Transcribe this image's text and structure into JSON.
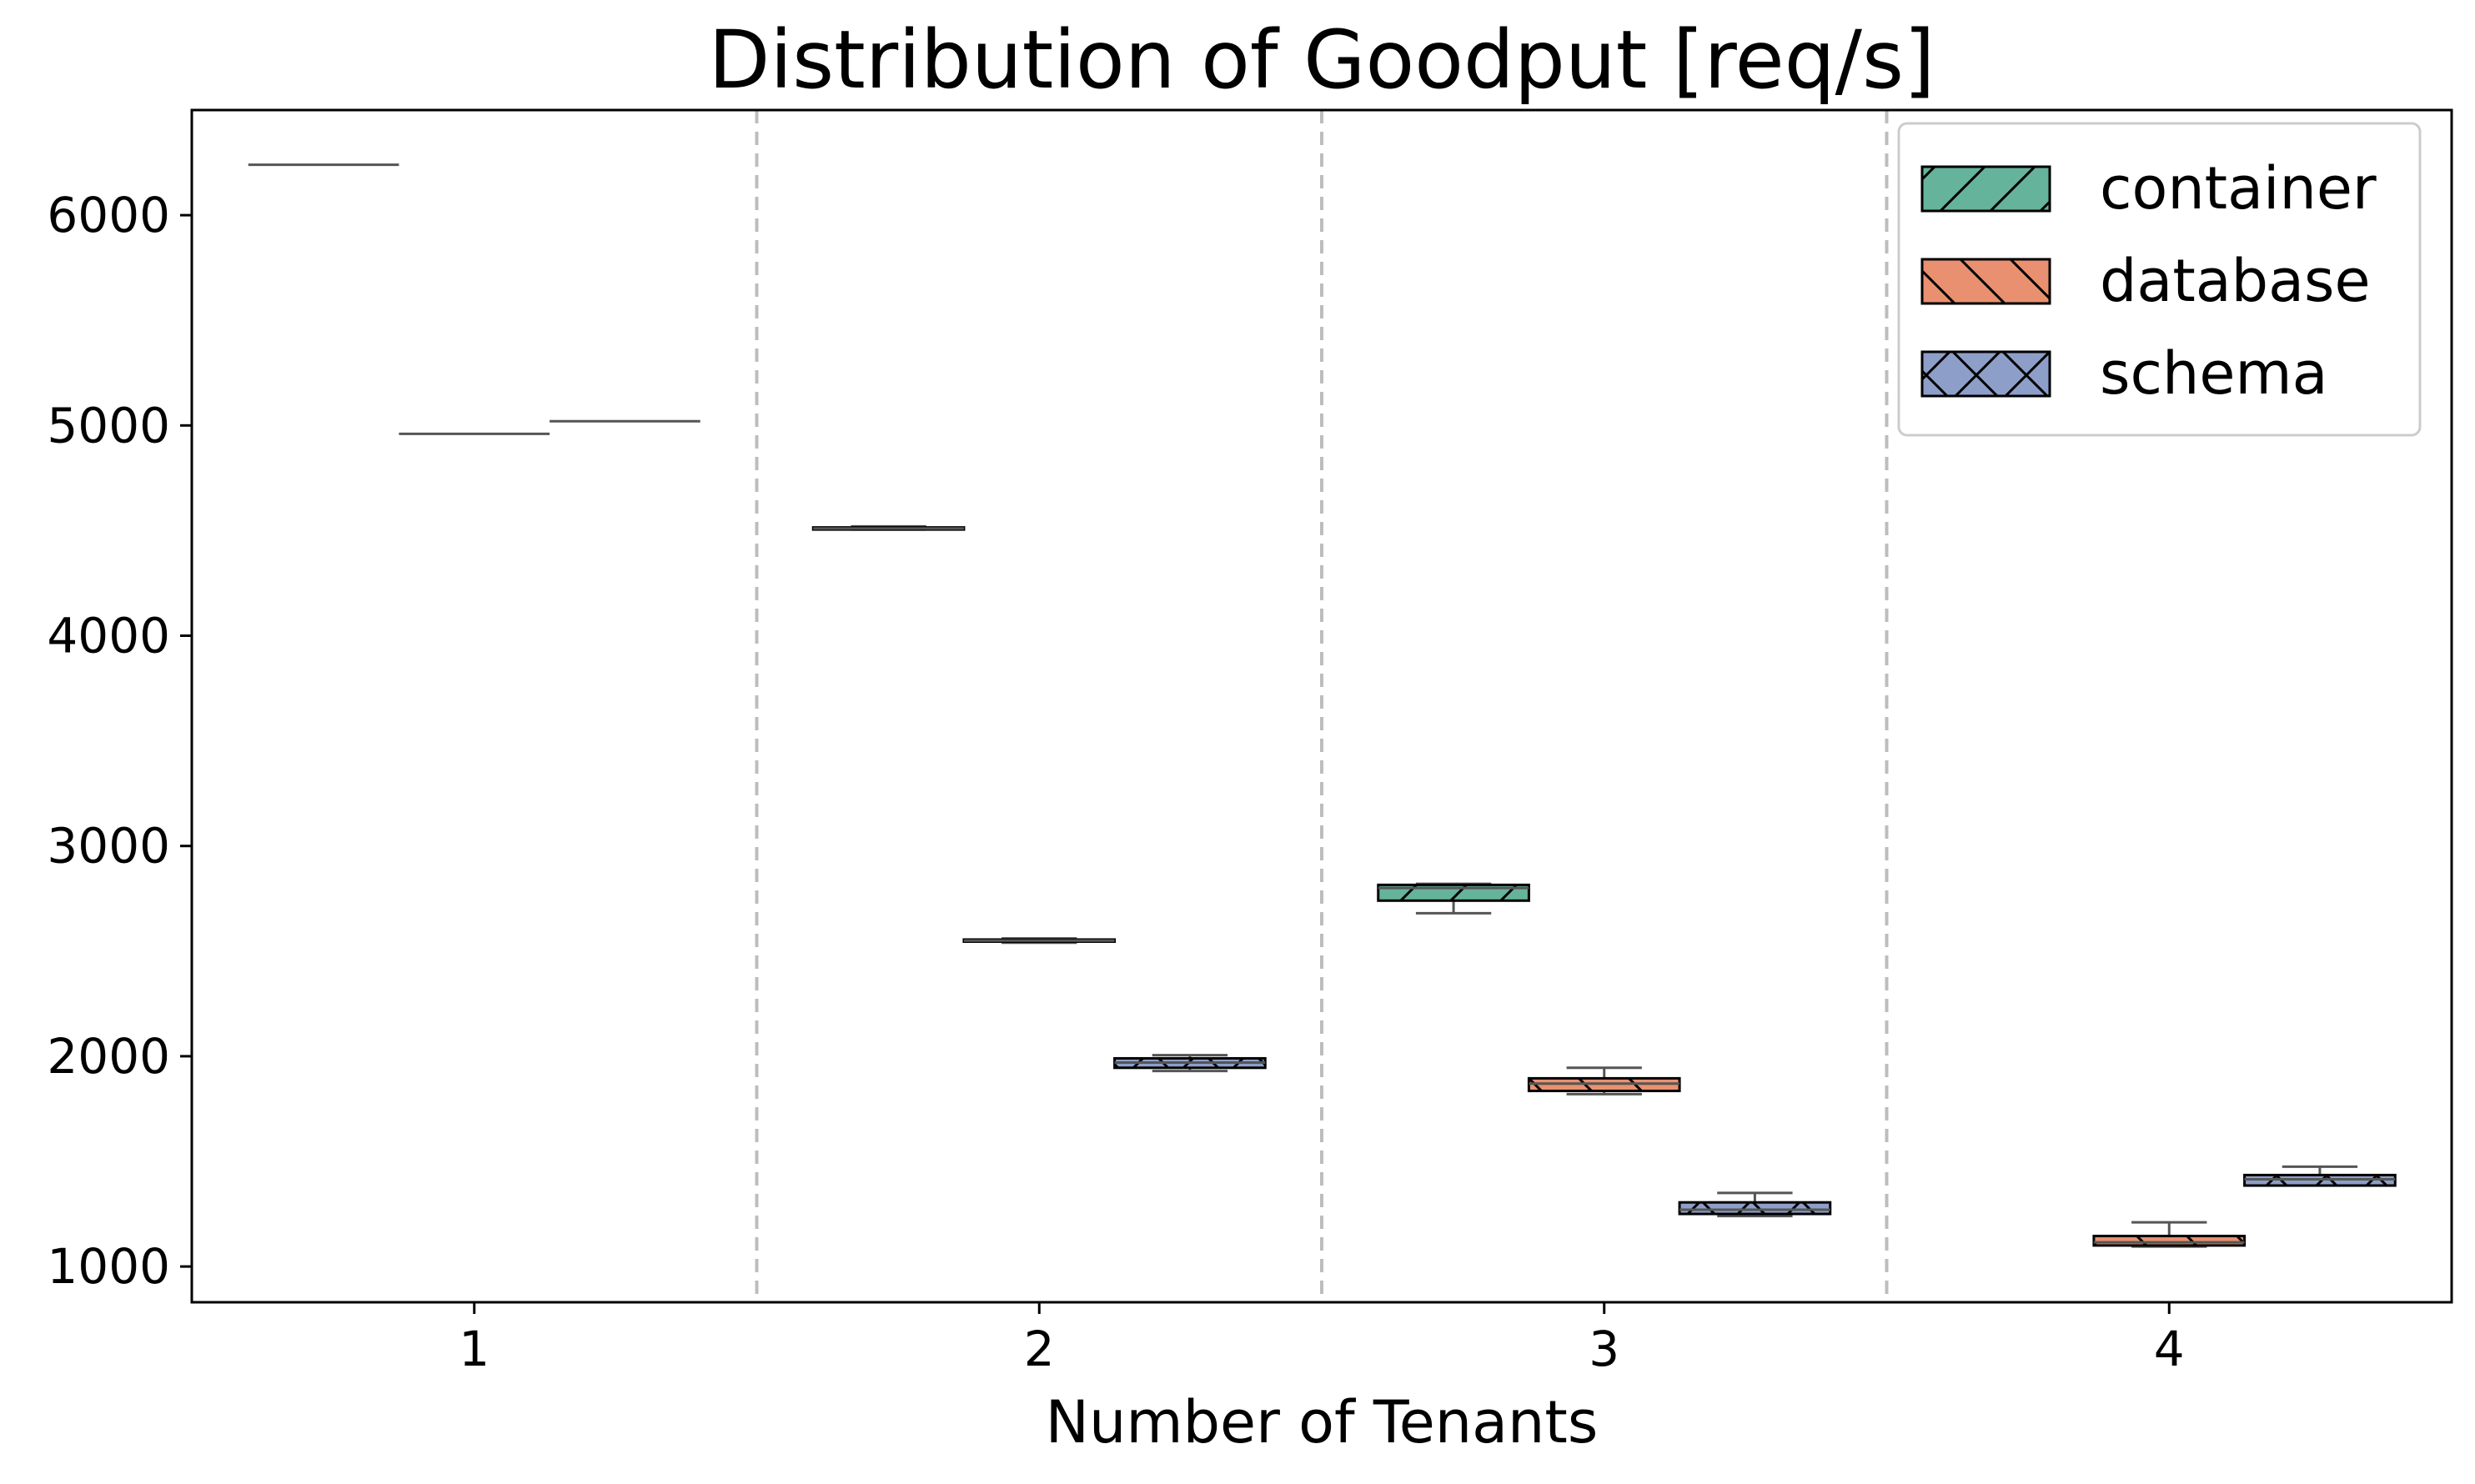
{
  "chart_data": {
    "type": "box",
    "title": "Distribution of Goodput [req/s]",
    "xlabel": "Number of Tenants",
    "ylabel": "",
    "categories": [
      "1",
      "2",
      "3",
      "4"
    ],
    "yticks": [
      "1000",
      "2000",
      "3000",
      "4000",
      "5000",
      "6000"
    ],
    "ylim": [
      830,
      6500
    ],
    "grid": false,
    "group_separators": "dashed vertical lines between tenant groups",
    "legend_position": "top-right",
    "series": [
      {
        "name": "container",
        "color": "#66b39b",
        "hatch": "/",
        "boxes": [
          {
            "category": "1",
            "whislo": 6240,
            "q1": 6240,
            "med": 6240,
            "q3": 6240,
            "whishi": 6240
          },
          {
            "category": "2",
            "whislo": 4505,
            "q1": 4505,
            "med": 4510,
            "q3": 4515,
            "whishi": 4520
          },
          {
            "category": "3",
            "whislo": 2680,
            "q1": 2740,
            "med": 2800,
            "q3": 2815,
            "whishi": 2820
          },
          null
        ]
      },
      {
        "name": "database",
        "color": "#e8906f",
        "hatch": "\\",
        "boxes": [
          {
            "category": "1",
            "whislo": 4960,
            "q1": 4960,
            "med": 4960,
            "q3": 4960,
            "whishi": 4960
          },
          {
            "category": "2",
            "whislo": 2540,
            "q1": 2545,
            "med": 2550,
            "q3": 2555,
            "whishi": 2560
          },
          {
            "category": "3",
            "whislo": 1820,
            "q1": 1835,
            "med": 1870,
            "q3": 1895,
            "whishi": 1945
          },
          {
            "category": "4",
            "whislo": 1095,
            "q1": 1100,
            "med": 1115,
            "q3": 1145,
            "whishi": 1210
          }
        ]
      },
      {
        "name": "schema",
        "color": "#8d9ec8",
        "hatch": "x",
        "boxes": [
          {
            "category": "1",
            "whislo": 5020,
            "q1": 5020,
            "med": 5020,
            "q3": 5020,
            "whishi": 5020
          },
          {
            "category": "2",
            "whislo": 1930,
            "q1": 1945,
            "med": 1970,
            "q3": 1990,
            "whishi": 2005
          },
          {
            "category": "3",
            "whislo": 1240,
            "q1": 1250,
            "med": 1270,
            "q3": 1305,
            "whishi": 1350
          },
          {
            "category": "4",
            "whislo": 1385,
            "q1": 1385,
            "med": 1415,
            "q3": 1435,
            "whishi": 1475
          }
        ]
      }
    ]
  }
}
